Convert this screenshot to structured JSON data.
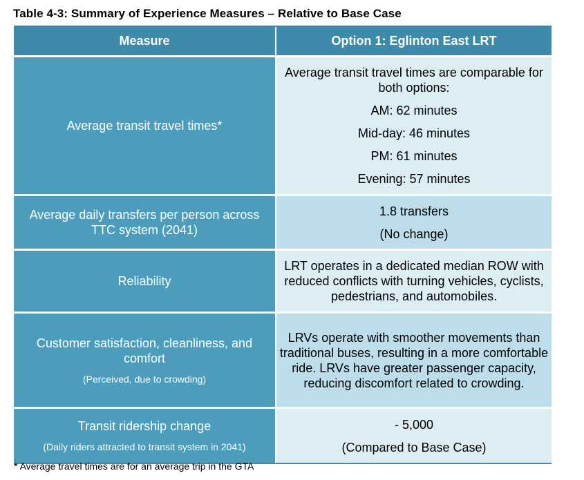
{
  "title": "Table 4-3: Summary of Experience Measures – Relative to Base Case",
  "headers": {
    "measure": "Measure",
    "option": "Option 1: Eglinton East LRT"
  },
  "rows": [
    {
      "measure": "Average transit travel times*",
      "lines": [
        "Average transit travel times are comparable for both options:",
        "AM: 62 minutes",
        "Mid-day: 46 minutes",
        "PM: 61 minutes",
        "Evening: 57 minutes"
      ]
    },
    {
      "measure": "Average daily transfers per person across TTC system (2041)",
      "lines": [
        "1.8 transfers",
        "(No change)"
      ]
    },
    {
      "measure": "Reliability",
      "lines": [
        "LRT operates in a dedicated median ROW with reduced conflicts with turning vehicles, cyclists, pedestrians, and automobiles."
      ]
    },
    {
      "measure": "Customer satisfaction, cleanliness, and comfort",
      "measure_note": "(Perceived, due to crowding)",
      "lines": [
        "LRVs operate with smoother movements than traditional buses, resulting in a more comfortable ride. LRVs have greater passenger capacity, reducing discomfort related to crowding."
      ]
    },
    {
      "measure": "Transit ridership change",
      "measure_note": "(Daily riders attracted to transit system in 2041)",
      "lines": [
        "- 5,000",
        "(Compared to Base Case)"
      ]
    }
  ],
  "footnote": "* Average travel times are for an average trip in the GTA",
  "colors": {
    "header": "#3d8aab",
    "measure_cell": "#4b9dbb",
    "light": "#dcedf4",
    "mid": "#bcdde9"
  }
}
